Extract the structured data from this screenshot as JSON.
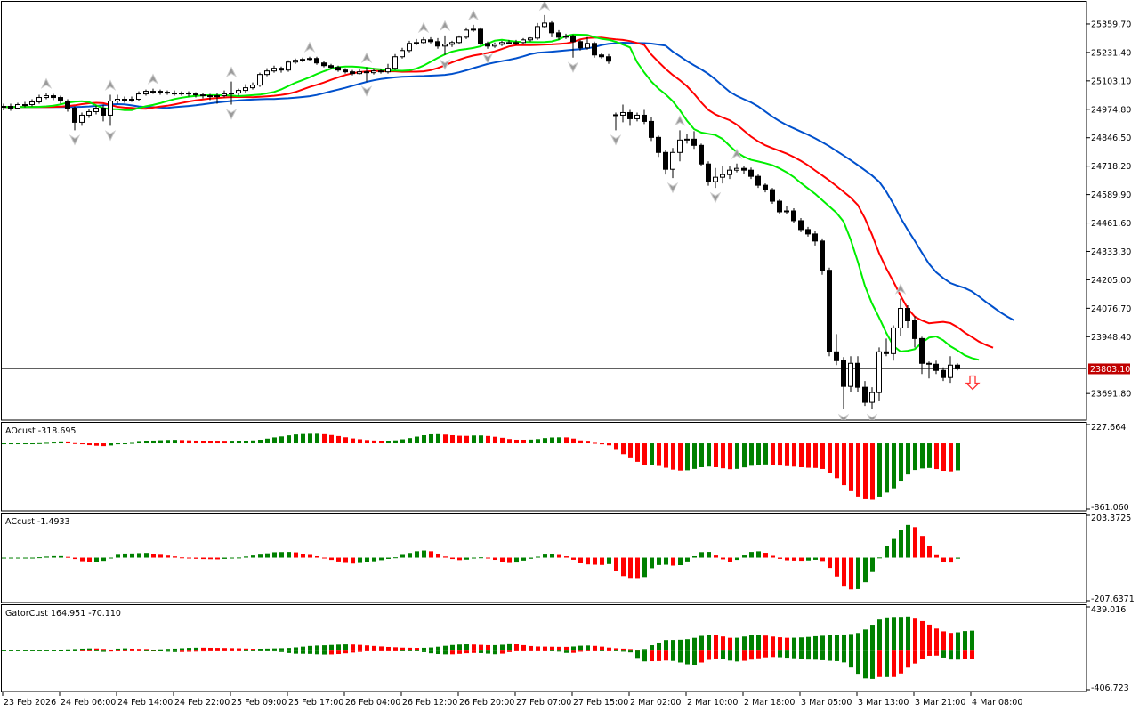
{
  "chart_data": {
    "type": "candlestick",
    "price_axis": {
      "ylim": [
        23572,
        25460
      ],
      "ticks": [
        "25359.70",
        "25231.40",
        "25103.10",
        "24974.80",
        "24846.50",
        "24718.20",
        "24589.90",
        "24461.60",
        "24333.30",
        "24205.00",
        "24076.70",
        "23948.40",
        "23691.80"
      ],
      "tick_values": [
        25359.7,
        25231.4,
        25103.1,
        24974.8,
        24846.5,
        24718.2,
        24589.9,
        24461.6,
        24333.3,
        24205.0,
        24076.7,
        23948.4,
        23691.8
      ],
      "current_price": 23803.1,
      "current_price_label": "23803.10",
      "current_price_color": "#c00000"
    },
    "time_axis": {
      "bars_per_label": 8,
      "labels": [
        "23 Feb 2026",
        "24 Feb 06:00",
        "24 Feb 14:00",
        "24 Feb 22:00",
        "25 Feb 09:00",
        "25 Feb 17:00",
        "26 Feb 04:00",
        "26 Feb 12:00",
        "26 Feb 20:00",
        "27 Feb 07:00",
        "27 Feb 15:00",
        "2 Mar 02:00",
        "2 Mar 10:00",
        "2 Mar 18:00",
        "3 Mar 05:00",
        "3 Mar 13:00",
        "3 Mar 21:00",
        "4 Mar 08:00"
      ]
    },
    "ohlc": [
      [
        24984,
        25000,
        24970,
        24988
      ],
      [
        24988,
        25000,
        24968,
        24980
      ],
      [
        24980,
        25004,
        24976,
        24996
      ],
      [
        24996,
        25008,
        24984,
        24996
      ],
      [
        24996,
        25020,
        24988,
        25008
      ],
      [
        25008,
        25040,
        25000,
        25028
      ],
      [
        25028,
        25048,
        25020,
        25036
      ],
      [
        25036,
        25044,
        25016,
        25028
      ],
      [
        25028,
        25036,
        25000,
        25012
      ],
      [
        25012,
        25020,
        24964,
        24980
      ],
      [
        24980,
        24988,
        24880,
        24916
      ],
      [
        24916,
        24960,
        24900,
        24948
      ],
      [
        24948,
        24976,
        24936,
        24964
      ],
      [
        24964,
        24992,
        24952,
        24980
      ],
      [
        24980,
        24996,
        24920,
        24948
      ],
      [
        24948,
        25040,
        24900,
        25012
      ],
      [
        25012,
        25040,
        25000,
        25020
      ],
      [
        25020,
        25032,
        25004,
        25020
      ],
      [
        25020,
        25032,
        25008,
        25020
      ],
      [
        25020,
        25056,
        25012,
        25044
      ],
      [
        25044,
        25064,
        25036,
        25056
      ],
      [
        25056,
        25068,
        25044,
        25056
      ],
      [
        25056,
        25064,
        25040,
        25052
      ],
      [
        25052,
        25060,
        25040,
        25048
      ],
      [
        25048,
        25060,
        25036,
        25048
      ],
      [
        25048,
        25056,
        25036,
        25048
      ],
      [
        25048,
        25056,
        25032,
        25044
      ],
      [
        25044,
        25052,
        25028,
        25040
      ],
      [
        25040,
        25048,
        25024,
        25036
      ],
      [
        25036,
        25044,
        25016,
        25032
      ],
      [
        25032,
        25048,
        25000,
        25036
      ],
      [
        25036,
        25060,
        25028,
        25044
      ],
      [
        25044,
        25100,
        24996,
        25048
      ],
      [
        25048,
        25068,
        25036,
        25060
      ],
      [
        25060,
        25088,
        25048,
        25072
      ],
      [
        25072,
        25096,
        25064,
        25084
      ],
      [
        25084,
        25140,
        25076,
        25132
      ],
      [
        25132,
        25160,
        25124,
        25148
      ],
      [
        25148,
        25172,
        25140,
        25160
      ],
      [
        25160,
        25168,
        25140,
        25152
      ],
      [
        25152,
        25196,
        25144,
        25188
      ],
      [
        25188,
        25204,
        25180,
        25196
      ],
      [
        25196,
        25208,
        25188,
        25200
      ],
      [
        25200,
        25212,
        25192,
        25204
      ],
      [
        25204,
        25212,
        25176,
        25184
      ],
      [
        25184,
        25192,
        25164,
        25172
      ],
      [
        25172,
        25180,
        25156,
        25164
      ],
      [
        25164,
        25172,
        25144,
        25152
      ],
      [
        25152,
        25160,
        25136,
        25144
      ],
      [
        25144,
        25152,
        25128,
        25136
      ],
      [
        25136,
        25156,
        25132,
        25144
      ],
      [
        25144,
        25164,
        25100,
        25140
      ],
      [
        25140,
        25160,
        25132,
        25148
      ],
      [
        25148,
        25156,
        25136,
        25144
      ],
      [
        25144,
        25180,
        25136,
        25160
      ],
      [
        25160,
        25224,
        25152,
        25212
      ],
      [
        25212,
        25252,
        25204,
        25240
      ],
      [
        25240,
        25284,
        25232,
        25272
      ],
      [
        25272,
        25292,
        25264,
        25276
      ],
      [
        25276,
        25300,
        25268,
        25288
      ],
      [
        25288,
        25300,
        25272,
        25280
      ],
      [
        25280,
        25296,
        25248,
        25260
      ],
      [
        25260,
        25308,
        25220,
        25268
      ],
      [
        25268,
        25284,
        25256,
        25276
      ],
      [
        25276,
        25308,
        25268,
        25300
      ],
      [
        25300,
        25344,
        25292,
        25332
      ],
      [
        25332,
        25356,
        25324,
        25336
      ],
      [
        25336,
        25344,
        25264,
        25272
      ],
      [
        25272,
        25280,
        25248,
        25260
      ],
      [
        25260,
        25276,
        25252,
        25268
      ],
      [
        25268,
        25284,
        25260,
        25276
      ],
      [
        25276,
        25288,
        25268,
        25276
      ],
      [
        25276,
        25288,
        25264,
        25276
      ],
      [
        25276,
        25296,
        25268,
        25288
      ],
      [
        25288,
        25300,
        25280,
        25296
      ],
      [
        25296,
        25364,
        25288,
        25348
      ],
      [
        25348,
        25400,
        25340,
        25364
      ],
      [
        25364,
        25372,
        25300,
        25320
      ],
      [
        25320,
        25332,
        25288,
        25300
      ],
      [
        25300,
        25316,
        25292,
        25304
      ],
      [
        25304,
        25312,
        25208,
        25280
      ],
      [
        25280,
        25288,
        25240,
        25252
      ],
      [
        25252,
        25300,
        25244,
        25272
      ],
      [
        25272,
        25280,
        25208,
        25220
      ],
      [
        25220,
        25228,
        25204,
        25212
      ],
      [
        25212,
        25224,
        25180,
        25192
      ],
      [
        24950,
        24960,
        24880,
        24948
      ],
      [
        24948,
        24996,
        24916,
        24960
      ],
      [
        24960,
        24972,
        24900,
        24932
      ],
      [
        24932,
        24960,
        24920,
        24948
      ],
      [
        24948,
        24972,
        24908,
        24920
      ],
      [
        24920,
        24940,
        24832,
        24848
      ],
      [
        24848,
        24856,
        24760,
        24780
      ],
      [
        24780,
        24790,
        24680,
        24704
      ],
      [
        24704,
        24800,
        24664,
        24780
      ],
      [
        24780,
        24880,
        24740,
        24836
      ],
      [
        24836,
        24864,
        24820,
        24840
      ],
      [
        24840,
        24876,
        24796,
        24812
      ],
      [
        24812,
        24820,
        24720,
        24728
      ],
      [
        24728,
        24740,
        24630,
        24648
      ],
      [
        24648,
        24710,
        24620,
        24668
      ],
      [
        24668,
        24720,
        24640,
        24680
      ],
      [
        24680,
        24720,
        24660,
        24700
      ],
      [
        24700,
        24730,
        24690,
        24708
      ],
      [
        24708,
        24720,
        24684,
        24700
      ],
      [
        24700,
        24712,
        24660,
        24672
      ],
      [
        24672,
        24680,
        24620,
        24632
      ],
      [
        24632,
        24640,
        24600,
        24612
      ],
      [
        24612,
        24620,
        24548,
        24560
      ],
      [
        24560,
        24568,
        24500,
        24512
      ],
      [
        24512,
        24540,
        24500,
        24516
      ],
      [
        24516,
        24528,
        24460,
        24472
      ],
      [
        24472,
        24484,
        24420,
        24432
      ],
      [
        24432,
        24444,
        24400,
        24412
      ],
      [
        24412,
        24424,
        24360,
        24380
      ],
      [
        24380,
        24392,
        24228,
        24248
      ],
      [
        24248,
        24260,
        23860,
        23880
      ],
      [
        23880,
        23960,
        23820,
        23840
      ],
      [
        23840,
        23856,
        23620,
        23724
      ],
      [
        23724,
        23860,
        23700,
        23828
      ],
      [
        23828,
        23860,
        23700,
        23720
      ],
      [
        23720,
        23748,
        23636,
        23652
      ],
      [
        23652,
        23720,
        23620,
        23696
      ],
      [
        23696,
        23900,
        23660,
        23880
      ],
      [
        23880,
        23940,
        23860,
        23872
      ],
      [
        23872,
        24000,
        23840,
        23988
      ],
      [
        23988,
        24120,
        23950,
        24076
      ],
      [
        24076,
        24090,
        23990,
        24020
      ],
      [
        24020,
        24040,
        23900,
        23940
      ],
      [
        23940,
        23948,
        23780,
        23828
      ],
      [
        23828,
        23836,
        23760,
        23824
      ],
      [
        23824,
        23840,
        23780,
        23796
      ],
      [
        23796,
        23810,
        23748,
        23764
      ],
      [
        23764,
        23860,
        23740,
        23820
      ],
      [
        23820,
        23828,
        23796,
        23803.1
      ]
    ],
    "alligator": {
      "jaw": {
        "period": 13,
        "shift": 8,
        "color": "#0050cc"
      },
      "teeth": {
        "period": 8,
        "shift": 5,
        "color": "#ff0000"
      },
      "lips": {
        "period": 5,
        "shift": 3,
        "color": "#00ee00"
      }
    },
    "fractal_color": "#9a9a9a",
    "signal_arrow": {
      "direction": "down",
      "color": "#ff3030"
    },
    "candle_colors": {
      "bull": "#ffffff",
      "bear": "#000000",
      "outline": "#000000"
    },
    "histogram_colors": {
      "up": "#008000",
      "down": "#ff0000"
    },
    "indicators": [
      {
        "id": "ao",
        "label": "AOcust -318.695",
        "ylim": [
          -861.06,
          227.664
        ],
        "max_label": "227.664",
        "min_label": "-861.060"
      },
      {
        "id": "ac",
        "label": "ACcust -1.4933",
        "ylim": [
          -207.6371,
          203.3725
        ],
        "max_label": "203.3725",
        "min_label": "-207.6371"
      },
      {
        "id": "gator",
        "label": "GatorCust 164.951 -70.110",
        "ylim": [
          -406.723,
          439.016
        ],
        "max_label": "439.016",
        "min_label": "-406.723"
      }
    ]
  }
}
